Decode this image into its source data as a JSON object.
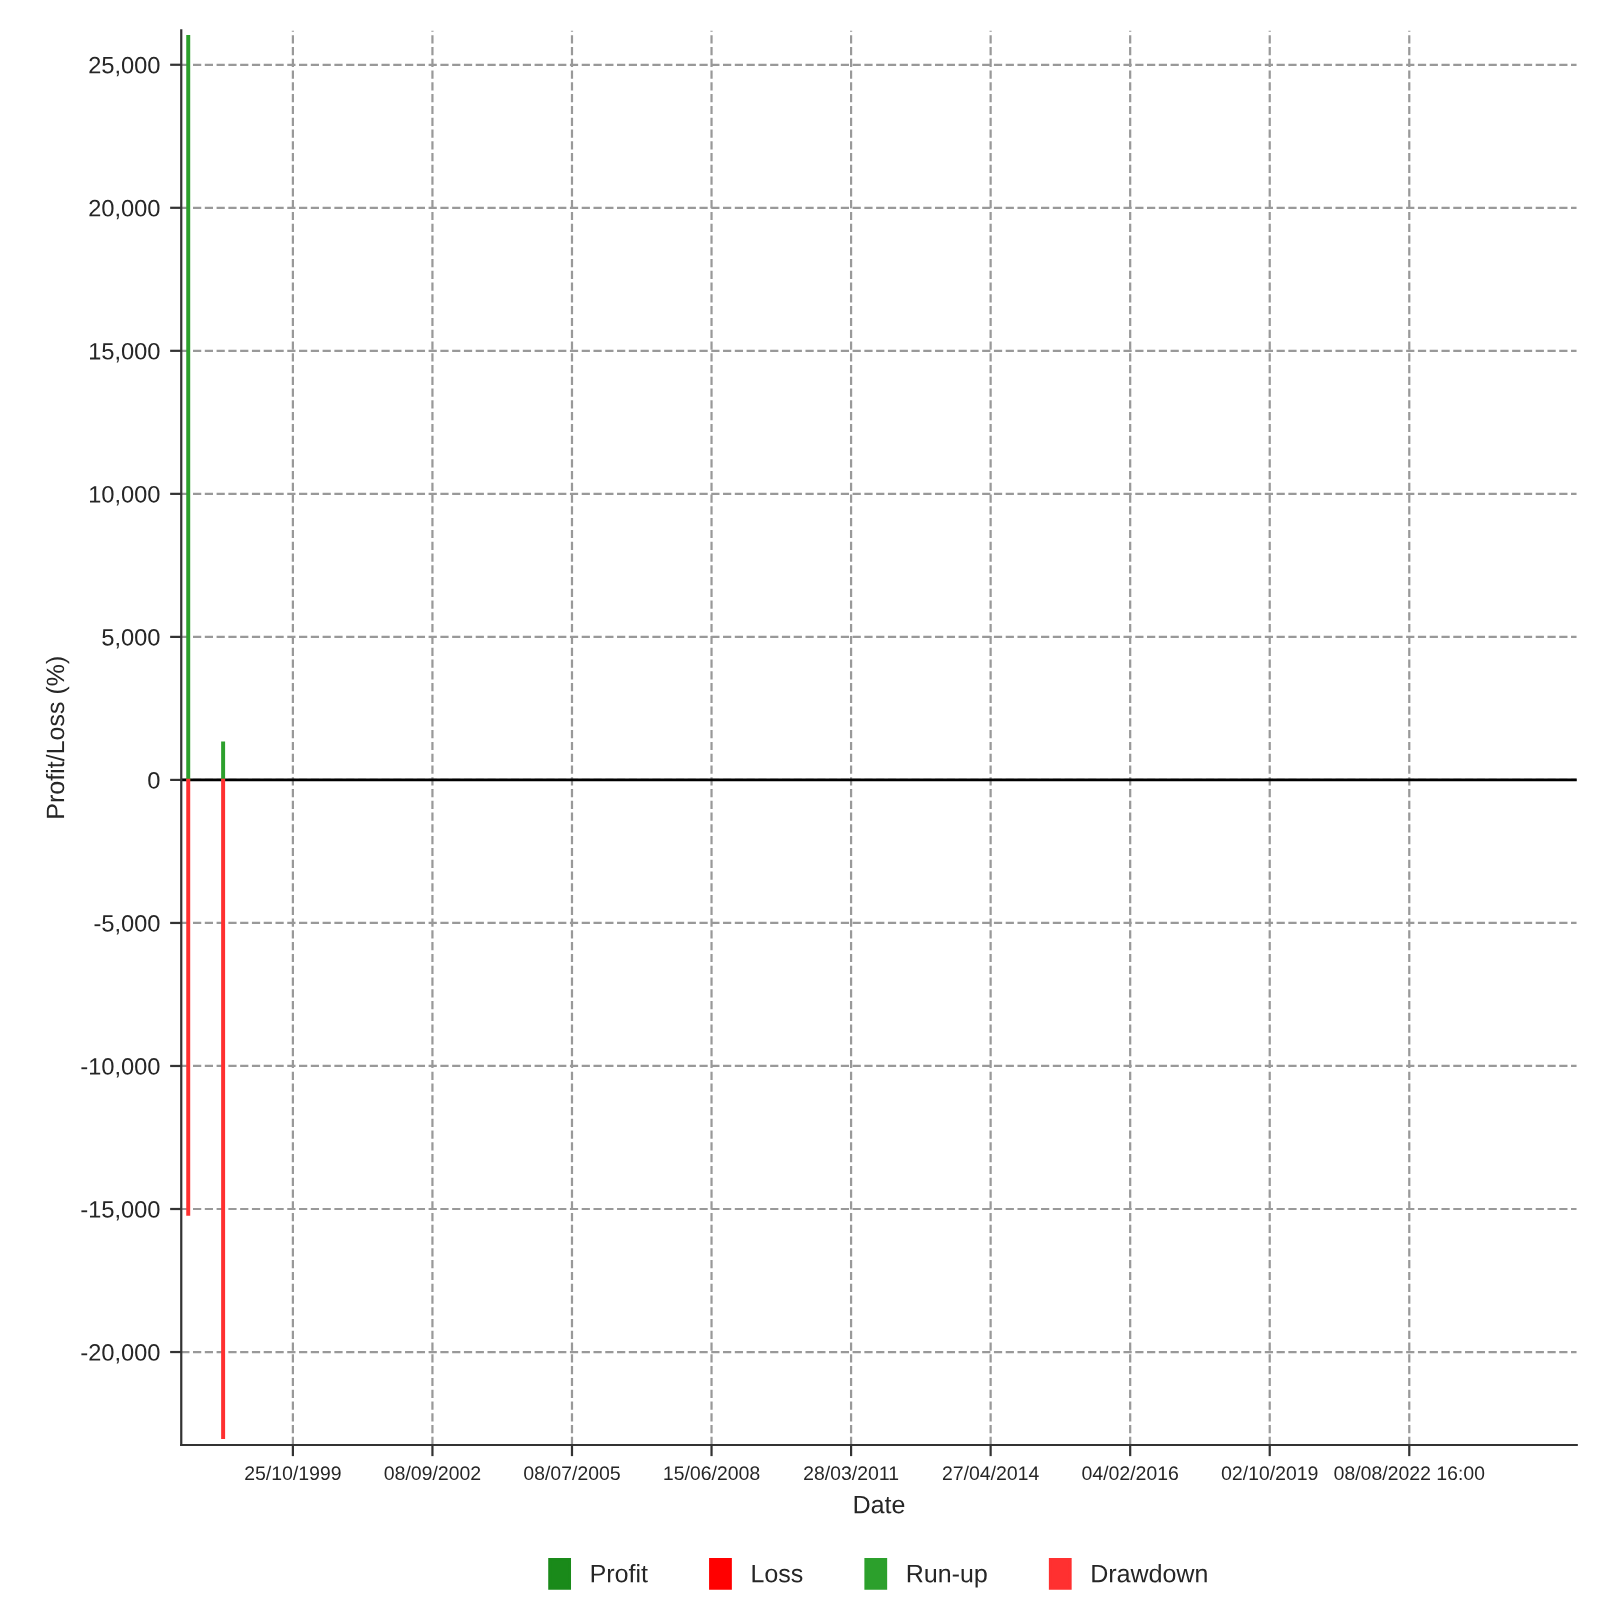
{
  "chart_data": {
    "type": "bar",
    "xlabel": "Date",
    "ylabel": "Profit/Loss (%)",
    "categories": [
      null,
      null,
      null,
      "25/10/1999",
      null,
      null,
      null,
      "08/09/2002",
      null,
      null,
      null,
      "08/07/2005",
      null,
      null,
      null,
      "15/06/2008",
      null,
      null,
      null,
      "28/03/2011",
      null,
      null,
      null,
      "27/04/2014",
      null,
      null,
      null,
      "04/02/2016",
      null,
      null,
      null,
      "02/10/2019",
      null,
      null,
      null,
      "08/08/2022 16:00",
      null,
      null,
      null,
      null
    ],
    "series": [
      {
        "name": "Profit",
        "color": "#1a8a1a",
        "values": [
          null,
          null,
          null,
          null,
          null,
          null,
          null,
          null,
          null,
          null,
          null,
          null,
          null,
          null,
          null,
          null,
          null,
          null,
          null,
          null,
          null,
          null,
          null,
          null,
          null,
          null,
          null,
          null,
          null,
          null,
          null,
          null,
          null,
          null,
          null,
          null,
          null,
          null,
          null,
          null
        ]
      },
      {
        "name": "Loss",
        "color": "#ff0000",
        "values": [
          null,
          null,
          null,
          null,
          null,
          null,
          null,
          null,
          null,
          null,
          null,
          null,
          null,
          null,
          null,
          null,
          null,
          null,
          null,
          null,
          null,
          null,
          null,
          null,
          null,
          null,
          null,
          null,
          null,
          null,
          null,
          null,
          null,
          null,
          null,
          null,
          null,
          null,
          null,
          null
        ]
      },
      {
        "name": "Run-up",
        "color": "#2ca02c",
        "values": [
          26000,
          1300,
          null,
          null,
          null,
          null,
          null,
          null,
          null,
          null,
          null,
          null,
          null,
          null,
          null,
          null,
          null,
          null,
          null,
          null,
          null,
          null,
          null,
          null,
          null,
          null,
          null,
          null,
          null,
          null,
          null,
          null,
          null,
          null,
          null,
          null,
          null,
          null,
          null,
          null
        ]
      },
      {
        "name": "Drawdown",
        "color": "#ff3030",
        "values": [
          -15200,
          -23000,
          null,
          null,
          null,
          null,
          null,
          null,
          null,
          null,
          null,
          null,
          null,
          null,
          null,
          null,
          null,
          null,
          null,
          null,
          null,
          null,
          null,
          null,
          null,
          null,
          null,
          null,
          null,
          null,
          null,
          null,
          null,
          null,
          null,
          null,
          null,
          null,
          null,
          null
        ]
      }
    ],
    "ylim": [
      -23250,
      26200
    ],
    "yticks": [
      {
        "value": -20000,
        "label": "-20,000"
      },
      {
        "value": -15000,
        "label": "-15,000"
      },
      {
        "value": -10000,
        "label": "-10,000"
      },
      {
        "value": -5000,
        "label": "-5,000"
      },
      0,
      {
        "value": 5000,
        "label": "5,000"
      },
      {
        "value": 10000,
        "label": "10,000"
      },
      {
        "value": 15000,
        "label": "15,000"
      },
      {
        "value": 20000,
        "label": "20,000"
      },
      {
        "value": 25000,
        "label": "25,000"
      }
    ],
    "ref_lines": [
      {
        "axis": "y",
        "value": 0,
        "color": "#000000"
      }
    ],
    "grid": true,
    "legend": "bottom"
  }
}
